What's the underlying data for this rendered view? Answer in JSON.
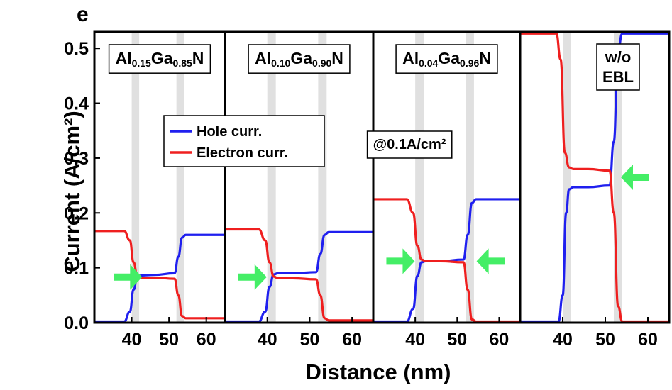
{
  "panel_letter": "e",
  "annotation": "@0.1A/cm²",
  "chart_data": [
    {
      "type": "line",
      "panel_label": {
        "parts": [
          [
            "Al",
            ""
          ],
          [
            "0.15",
            "sub"
          ],
          [
            "Ga",
            ""
          ],
          [
            "0.85",
            "sub"
          ],
          [
            "N",
            ""
          ]
        ]
      },
      "xlabel": "Distance (nm)",
      "ylabel": "Current (A/cm²)",
      "xlim": [
        30,
        65
      ],
      "ylim": [
        0,
        0.53
      ],
      "xticks": [
        "40",
        "50",
        "60"
      ],
      "yticks": [
        "0.0",
        "0.1",
        "0.2",
        "0.3",
        "0.4",
        "0.5"
      ],
      "shaded_regions_nm": [
        [
          40,
          42
        ],
        [
          52,
          54
        ]
      ],
      "legend": {
        "placement": "center",
        "entries": [
          "Hole curr.",
          "Electron curr."
        ]
      },
      "series": [
        {
          "name": "Hole curr.",
          "color": "#1f1fef",
          "x": [
            30,
            38,
            39.5,
            40.5,
            41.5,
            42.5,
            46,
            51.5,
            52.5,
            53.5,
            54.5,
            65
          ],
          "y": [
            0.002,
            0.002,
            0.02,
            0.06,
            0.083,
            0.086,
            0.087,
            0.09,
            0.12,
            0.155,
            0.16,
            0.16
          ]
        },
        {
          "name": "Electron curr.",
          "color": "#ef1f1f",
          "x": [
            30,
            38,
            39.5,
            40.5,
            41.5,
            42.5,
            46,
            51.5,
            52.5,
            53.5,
            54.5,
            65
          ],
          "y": [
            0.167,
            0.167,
            0.15,
            0.11,
            0.085,
            0.082,
            0.082,
            0.08,
            0.05,
            0.012,
            0.008,
            0.008
          ]
        }
      ],
      "arrows": [
        {
          "x": 39,
          "y": 0.083,
          "direction": "right"
        }
      ]
    },
    {
      "type": "line",
      "panel_label": {
        "parts": [
          [
            "Al",
            ""
          ],
          [
            "0.10",
            "sub"
          ],
          [
            "Ga",
            ""
          ],
          [
            "0.90",
            "sub"
          ],
          [
            "N",
            ""
          ]
        ]
      },
      "xlim": [
        30,
        65
      ],
      "ylim": [
        0,
        0.53
      ],
      "xticks": [
        "40",
        "50",
        "60"
      ],
      "shaded_regions_nm": [
        [
          40,
          42
        ],
        [
          52,
          54
        ]
      ],
      "series": [
        {
          "name": "Hole curr.",
          "color": "#1f1fef",
          "x": [
            30,
            38,
            39.5,
            40.5,
            41.5,
            42.5,
            46,
            51.5,
            52.5,
            53.5,
            54.5,
            65
          ],
          "y": [
            0.002,
            0.002,
            0.02,
            0.065,
            0.088,
            0.09,
            0.09,
            0.092,
            0.125,
            0.16,
            0.165,
            0.165
          ]
        },
        {
          "name": "Electron curr.",
          "color": "#ef1f1f",
          "x": [
            30,
            38,
            39.5,
            40.5,
            41.5,
            42.5,
            46,
            51.5,
            52.5,
            53.5,
            54.5,
            65
          ],
          "y": [
            0.17,
            0.17,
            0.15,
            0.11,
            0.084,
            0.081,
            0.081,
            0.079,
            0.05,
            0.008,
            0.004,
            0.004
          ]
        }
      ],
      "arrows": [
        {
          "x": 36.5,
          "y": 0.083,
          "direction": "right"
        }
      ]
    },
    {
      "type": "line",
      "panel_label": {
        "parts": [
          [
            "Al",
            ""
          ],
          [
            "0.04",
            "sub"
          ],
          [
            "Ga",
            ""
          ],
          [
            "0.96",
            "sub"
          ],
          [
            "N",
            ""
          ]
        ]
      },
      "xlim": [
        30,
        65
      ],
      "ylim": [
        0,
        0.53
      ],
      "xticks": [
        "40",
        "50",
        "60"
      ],
      "shaded_regions_nm": [
        [
          40,
          42
        ],
        [
          52,
          54
        ]
      ],
      "series": [
        {
          "name": "Hole curr.",
          "color": "#1f1fef",
          "x": [
            30,
            38,
            39.5,
            40.5,
            41.5,
            42.5,
            46,
            51.5,
            52.5,
            53.5,
            54.5,
            65
          ],
          "y": [
            0.002,
            0.002,
            0.025,
            0.085,
            0.11,
            0.112,
            0.112,
            0.115,
            0.16,
            0.218,
            0.225,
            0.225
          ]
        },
        {
          "name": "Electron curr.",
          "color": "#ef1f1f",
          "x": [
            30,
            38,
            39.5,
            40.5,
            41.5,
            42.5,
            46,
            51.5,
            52.5,
            53.5,
            54.5,
            65
          ],
          "y": [
            0.225,
            0.225,
            0.2,
            0.14,
            0.115,
            0.112,
            0.112,
            0.11,
            0.06,
            0.006,
            0.002,
            0.002
          ]
        }
      ],
      "arrows": [
        {
          "x": 36.5,
          "y": 0.112,
          "direction": "right"
        },
        {
          "x": 58,
          "y": 0.112,
          "direction": "left"
        }
      ]
    },
    {
      "type": "line",
      "panel_label": {
        "parts": [
          [
            "w/o",
            ""
          ],
          [
            "EBL",
            ""
          ]
        ],
        "stacked": true
      },
      "xlim": [
        30,
        65
      ],
      "ylim": [
        0,
        0.53
      ],
      "xticks": [
        "40",
        "50",
        "60"
      ],
      "shaded_regions_nm": [
        [
          40,
          42
        ],
        [
          52,
          54
        ]
      ],
      "series": [
        {
          "name": "Hole curr.",
          "color": "#1f1fef",
          "x": [
            30,
            39,
            40,
            40.8,
            41.5,
            42.5,
            46,
            51,
            52,
            53,
            54,
            65
          ],
          "y": [
            0.002,
            0.002,
            0.05,
            0.2,
            0.243,
            0.247,
            0.247,
            0.25,
            0.33,
            0.5,
            0.527,
            0.527
          ]
        },
        {
          "name": "Electron curr.",
          "color": "#ef1f1f",
          "x": [
            30,
            38.5,
            39.5,
            40.5,
            41.5,
            42.5,
            46,
            51,
            52,
            53,
            54,
            65
          ],
          "y": [
            0.527,
            0.527,
            0.48,
            0.31,
            0.283,
            0.28,
            0.28,
            0.277,
            0.2,
            0.03,
            0.002,
            0.002
          ]
        }
      ],
      "arrows": [
        {
          "x": 57,
          "y": 0.265,
          "direction": "left"
        }
      ]
    }
  ]
}
